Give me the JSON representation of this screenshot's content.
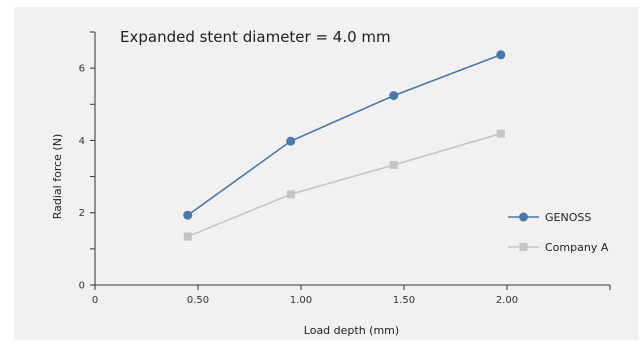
{
  "chart_data": {
    "type": "line",
    "annotation": "Expanded stent diameter = 4.0 mm",
    "xlabel": "Load depth (mm)",
    "ylabel": "Radial force (N)",
    "xlim": [
      0,
      2.5
    ],
    "ylim": [
      0,
      7
    ],
    "x_ticks": [
      {
        "value": 0,
        "label": "0"
      },
      {
        "value": 0.5,
        "label": "0.50"
      },
      {
        "value": 1.0,
        "label": "1.00"
      },
      {
        "value": 1.5,
        "label": "1.50"
      },
      {
        "value": 2.0,
        "label": "2.00"
      },
      {
        "value": 2.5,
        "label": ""
      }
    ],
    "y_ticks": [
      {
        "value": 0,
        "label": "0"
      },
      {
        "value": 1,
        "label": ""
      },
      {
        "value": 2,
        "label": "2"
      },
      {
        "value": 3,
        "label": ""
      },
      {
        "value": 4,
        "label": "4"
      },
      {
        "value": 5,
        "label": ""
      },
      {
        "value": 6,
        "label": "6"
      },
      {
        "value": 7,
        "label": ""
      }
    ],
    "grid": false,
    "legend_position": "right",
    "series": [
      {
        "name": "GENOSS",
        "color": "#4a78a8",
        "marker": "circle",
        "x": [
          0.45,
          0.95,
          1.45,
          1.97
        ],
        "y": [
          1.93,
          3.98,
          5.24,
          6.37
        ]
      },
      {
        "name": "Company A",
        "color": "#c4c4c4",
        "marker": "square",
        "x": [
          0.45,
          0.95,
          1.45,
          1.97
        ],
        "y": [
          1.34,
          2.51,
          3.32,
          4.19
        ]
      }
    ]
  },
  "colors": {
    "plot_background": "#f1f1f1",
    "axis": "#333333"
  }
}
